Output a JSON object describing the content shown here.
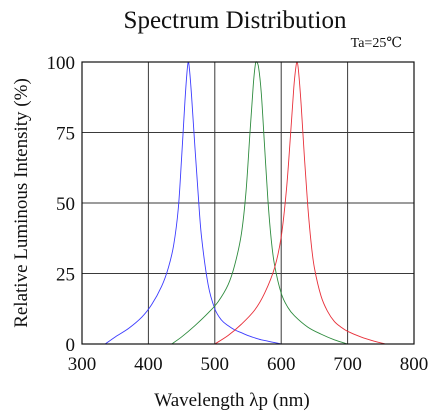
{
  "chart_data": {
    "type": "line",
    "title": "Spectrum Distribution",
    "condition": "Ta=25℃",
    "xlabel": "Wavelength λp (nm)",
    "ylabel": "Relative Luminous Intensity (%)",
    "xlim": [
      300,
      800
    ],
    "ylim": [
      0,
      100
    ],
    "xticks": [
      "300",
      "400",
      "500",
      "600",
      "700",
      "800"
    ],
    "yticks": [
      "0",
      "25",
      "50",
      "75",
      "100"
    ],
    "grid": true,
    "legend": "none",
    "series": [
      {
        "color": "#3c3cff",
        "x": [
          335,
          350,
          370,
          390,
          405,
          420,
          430,
          438,
          445,
          450,
          455,
          458,
          460,
          462,
          465,
          470,
          475,
          480,
          490,
          500,
          510,
          520,
          530,
          540,
          550,
          560,
          570,
          580,
          590,
          600
        ],
        "y": [
          0,
          2.5,
          5.5,
          9.5,
          14,
          20.5,
          27,
          35,
          48,
          66,
          86,
          96,
          100,
          97,
          88,
          70,
          53,
          38,
          21,
          12.5,
          8.5,
          6.5,
          5,
          4,
          3,
          2.2,
          1.5,
          1,
          0.5,
          0
        ]
      },
      {
        "color": "#2e8b3e",
        "x": [
          435,
          450,
          470,
          490,
          505,
          520,
          530,
          540,
          547,
          553,
          558,
          561,
          563,
          566,
          570,
          575,
          580,
          585,
          590,
          600,
          610,
          620,
          640,
          660,
          680,
          700
        ],
        "y": [
          0,
          2.5,
          6.5,
          11,
          15,
          21,
          28,
          39,
          54,
          75,
          92,
          99,
          100,
          98,
          89,
          70,
          51,
          37,
          28,
          18,
          13,
          10,
          6,
          3.5,
          1.5,
          0
        ]
      },
      {
        "color": "#e8303a",
        "x": [
          500,
          520,
          540,
          560,
          575,
          590,
          600,
          608,
          614,
          619,
          622,
          624,
          626,
          630,
          635,
          640,
          645,
          650,
          660,
          670,
          680,
          690,
          700,
          720,
          740,
          757
        ],
        "y": [
          0,
          3,
          7,
          12,
          18,
          27,
          38,
          55,
          74,
          91,
          98,
          100,
          97,
          85,
          66,
          49,
          36,
          27,
          17,
          11.5,
          8,
          6,
          4.5,
          2.5,
          1,
          0
        ]
      }
    ]
  }
}
